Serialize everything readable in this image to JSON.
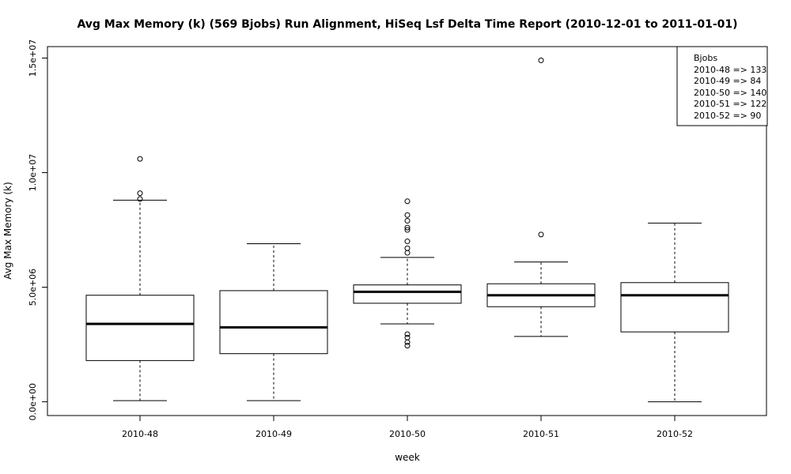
{
  "chart_data": {
    "type": "box",
    "title": "Avg Max Memory (k) (569 Bjobs) Run Alignment, HiSeq Lsf Delta Time Report (2010-12-01 to 2011-01-01)",
    "xlabel": "week",
    "ylabel": "Avg Max Memory (k)",
    "ylim": [
      -600000,
      15500000
    ],
    "y_ticks": [
      0,
      5000000,
      10000000,
      15000000
    ],
    "y_tick_labels": [
      "0.0e+00",
      "5.0e+06",
      "1.0e+07",
      "1.5e+07"
    ],
    "categories": [
      "2010-48",
      "2010-49",
      "2010-50",
      "2010-51",
      "2010-52"
    ],
    "boxes": [
      {
        "category": "2010-48",
        "whisker_low": 50000,
        "q1": 1800000,
        "median": 3400000,
        "q3": 4650000,
        "whisker_high": 8800000,
        "outliers": [
          8850000,
          9100000,
          10600000
        ]
      },
      {
        "category": "2010-49",
        "whisker_low": 50000,
        "q1": 2100000,
        "median": 3250000,
        "q3": 4850000,
        "whisker_high": 6900000,
        "outliers": []
      },
      {
        "category": "2010-50",
        "whisker_low": 3400000,
        "q1": 4300000,
        "median": 4800000,
        "q3": 5100000,
        "whisker_high": 6300000,
        "outliers": [
          2450000,
          2600000,
          2800000,
          2950000,
          6500000,
          6700000,
          7000000,
          7500000,
          7600000,
          7900000,
          8150000,
          8750000
        ]
      },
      {
        "category": "2010-51",
        "whisker_low": 2850000,
        "q1": 4150000,
        "median": 4650000,
        "q3": 5150000,
        "whisker_high": 6100000,
        "outliers": [
          7300000,
          14900000
        ]
      },
      {
        "category": "2010-52",
        "whisker_low": 0,
        "q1": 3050000,
        "median": 4650000,
        "q3": 5200000,
        "whisker_high": 7800000,
        "outliers": []
      }
    ],
    "legend": {
      "position": "top-right",
      "title": "Bjobs",
      "entries": [
        "2010-48 => 133",
        "2010-49 => 84",
        "2010-50 => 140",
        "2010-51 => 122",
        "2010-52 => 90"
      ]
    }
  }
}
